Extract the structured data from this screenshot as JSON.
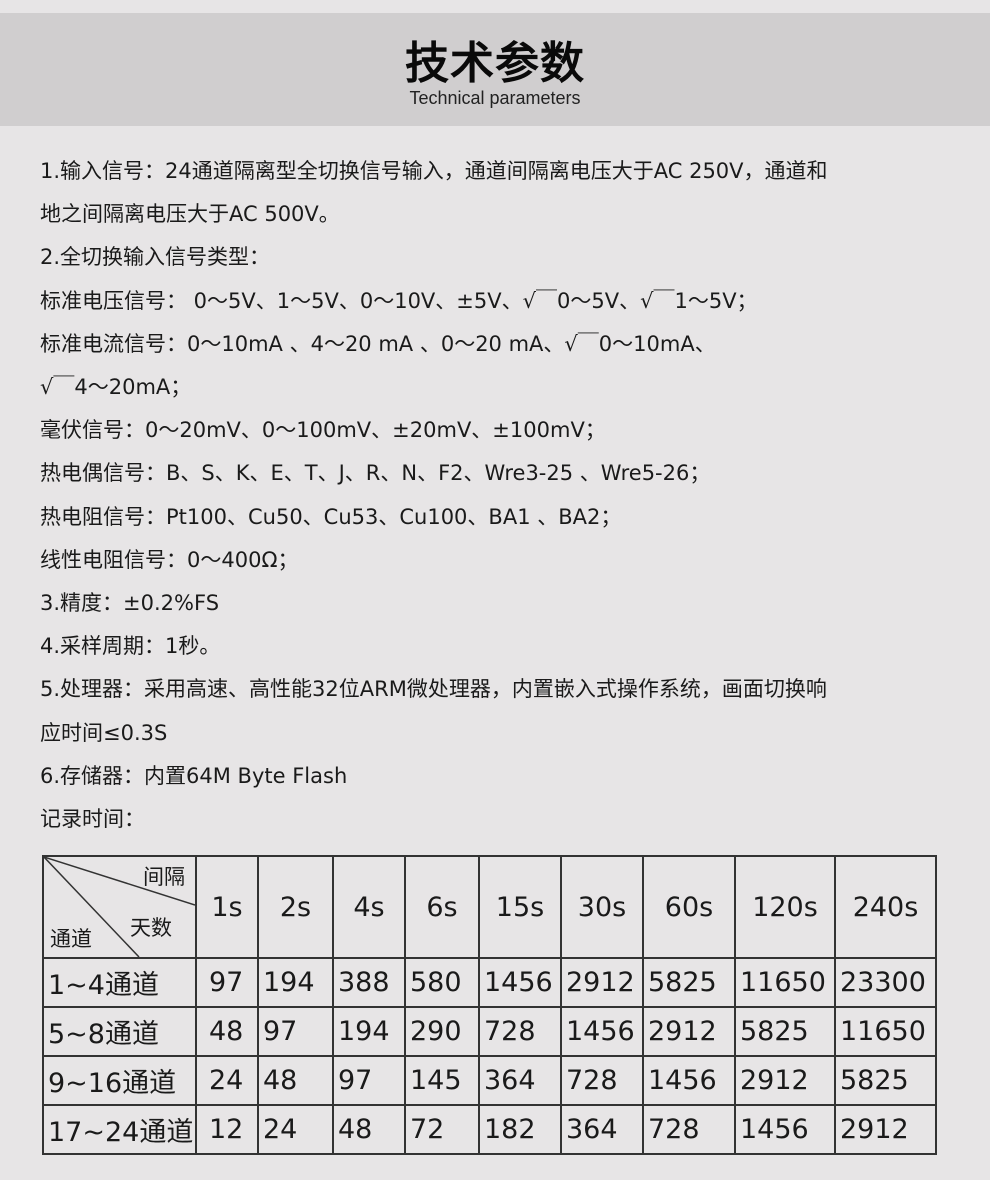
{
  "header": {
    "title": "技术参数",
    "subtitle": "Technical parameters"
  },
  "lines": [
    "1.输入信号：24通道隔离型全切换信号输入，通道间隔离电压大于AC 250V，通道和",
    "地之间隔离电压大于AC 500V。",
    "2.全切换输入信号类型：",
    "标准电压信号： 0～5V、1～5V、0～10V、±5V、√￣0～5V、√￣1～5V；",
    "标准电流信号：0～10mA 、4～20 mA 、0～20 mA、√￣0～10mA、",
    "√￣4～20mA；",
    "毫伏信号：0～20mV、0～100mV、±20mV、±100mV；",
    "热电偶信号：B、S、K、E、T、J、R、N、F2、Wre3-25 、Wre5-26；",
    "热电阻信号：Pt100、Cu50、Cu53、Cu100、BA1 、BA2；",
    "线性电阻信号：0～400Ω；",
    "3.精度：±0.2%FS",
    "4.采样周期：1秒。",
    "5.处理器：采用高速、高性能32位ARM微处理器，内置嵌入式操作系统，画面切换响",
    "应时间≤0.3S",
    "6.存储器：内置64M Byte Flash",
    "记录时间："
  ],
  "table": {
    "corner": {
      "top": "间隔",
      "middle": "天数",
      "bottom": "通道"
    },
    "columns": [
      "1s",
      "2s",
      "4s",
      "6s",
      "15s",
      "30s",
      "60s",
      "120s",
      "240s"
    ],
    "rows": [
      {
        "label": "1~4通道",
        "values": [
          "97",
          "194",
          "388",
          "580",
          "1456",
          "2912",
          "5825",
          "11650",
          "23300"
        ]
      },
      {
        "label": "5~8通道",
        "values": [
          "48",
          "97",
          "194",
          "290",
          "728",
          "1456",
          "2912",
          "5825",
          "11650"
        ]
      },
      {
        "label": "9~16通道",
        "values": [
          "24",
          "48",
          "97",
          "145",
          "364",
          "728",
          "1456",
          "2912",
          "5825"
        ]
      },
      {
        "label": "17~24通道",
        "values": [
          "12",
          "24",
          "48",
          "72",
          "182",
          "364",
          "728",
          "1456",
          "2912"
        ]
      }
    ]
  }
}
